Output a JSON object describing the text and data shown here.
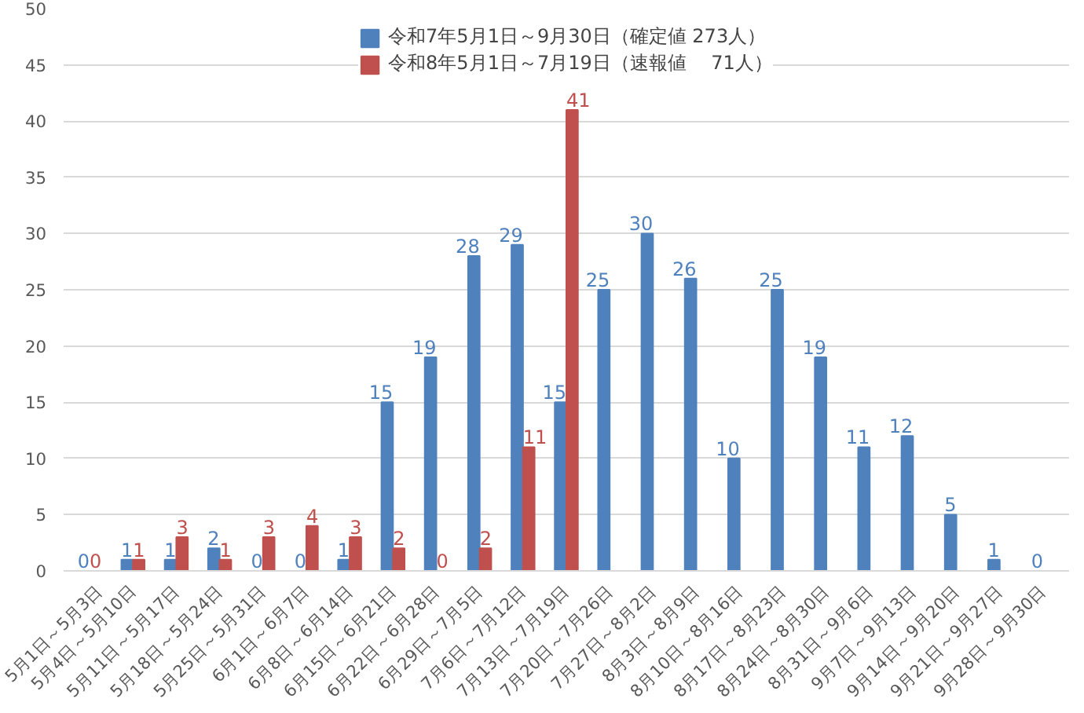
{
  "chart_data": {
    "type": "bar",
    "categories": [
      "5月1日～5月3日",
      "5月4日～5月10日",
      "5月11日～5月17日",
      "5月18日～5月24日",
      "5月25日～5月31日",
      "6月1日～6月7日",
      "6月8日～6月14日",
      "6月15日～6月21日",
      "6月22日～6月28日",
      "6月29日～7月5日",
      "7月6日～7月12日",
      "7月13日～7月19日",
      "7月20日～7月26日",
      "7月27日～8月2日",
      "8月3日～8月9日",
      "8月10日～8月16日",
      "8月17日～8月23日",
      "8月24日～8月30日",
      "8月31日～9月6日",
      "9月7日～9月13日",
      "9月14日～9月20日",
      "9月21日～9月27日",
      "9月28日～9月30日"
    ],
    "series": [
      {
        "name": "令和7年5月1日～9月30日（確定値 273人）",
        "color": "#4f81bd",
        "values": [
          0,
          1,
          1,
          2,
          0,
          0,
          1,
          15,
          19,
          28,
          29,
          15,
          25,
          30,
          26,
          10,
          25,
          19,
          11,
          12,
          5,
          1,
          0
        ]
      },
      {
        "name": "令和8年5月1日～7月19日（速報値　 71人）",
        "color": "#c0504d",
        "values": [
          0,
          1,
          3,
          1,
          3,
          4,
          3,
          2,
          0,
          2,
          11,
          41,
          null,
          null,
          null,
          null,
          null,
          null,
          null,
          null,
          null,
          null,
          null
        ]
      }
    ],
    "ylim": [
      0,
      50
    ],
    "yticks": [
      0,
      5,
      10,
      15,
      20,
      25,
      30,
      35,
      40,
      45,
      50
    ],
    "grid": "y",
    "legend": "top",
    "data_labels": true
  }
}
